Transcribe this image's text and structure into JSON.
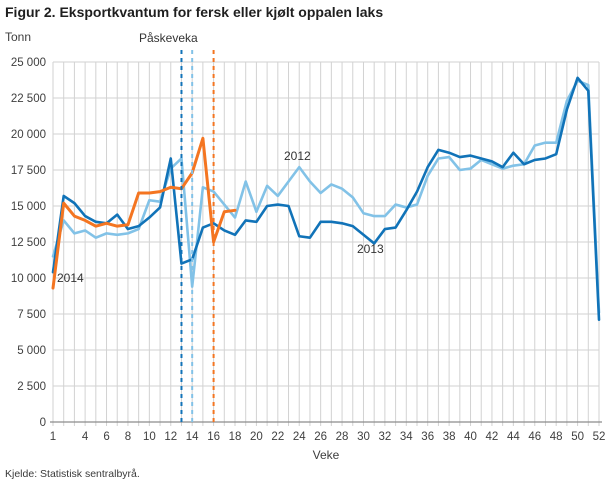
{
  "title": "Figur 2. Eksportkvantum for fersk eller kjølt oppalen laks",
  "source": "Kjelde: Statistisk sentralbyrå.",
  "colors": {
    "grid": "#d2d2d2",
    "axis": "#8c8c8c",
    "dark_blue": "#1173b8",
    "light_blue": "#82c2e7",
    "orange": "#f47521"
  },
  "chart_data": {
    "type": "line",
    "title": "Figur 2. Eksportkvantum for fersk eller kjølt oppalen laks",
    "ylabel": "Tonn",
    "xlabel": "Veke",
    "x_range": [
      1,
      52
    ],
    "ylim": [
      0,
      25000
    ],
    "grid": "both",
    "legend_position": "inline-annotations",
    "y_tick_values": [
      0,
      2500,
      5000,
      7500,
      10000,
      12500,
      15000,
      17500,
      20000,
      22500,
      25000
    ],
    "y_tick_labels": [
      "0",
      "2 500",
      "5 000",
      "7 500",
      "10 000",
      "12 500",
      "15 000",
      "17 500",
      "20 000",
      "22 500",
      "25 000"
    ],
    "x_tick_weeks": [
      1,
      4,
      6,
      8,
      10,
      12,
      14,
      16,
      18,
      20,
      22,
      24,
      26,
      28,
      30,
      32,
      34,
      36,
      38,
      40,
      42,
      44,
      46,
      48,
      50,
      52
    ],
    "annotations": {
      "paskeveka": "Påskeveka",
      "s2012": "2012",
      "s2013": "2013",
      "s2014": "2014"
    },
    "easter_lines": [
      {
        "year": "2013",
        "week": 13,
        "color": "#1173b8"
      },
      {
        "year": "2012",
        "week": 14,
        "color": "#82c2e7"
      },
      {
        "year": "2014",
        "week": 16,
        "color": "#f47521"
      }
    ],
    "series": [
      {
        "name": "2012",
        "color": "#82c2e7",
        "start_week": 1,
        "values": [
          11500,
          14000,
          13100,
          13300,
          12800,
          13100,
          13000,
          13100,
          13400,
          15400,
          15300,
          17600,
          18300,
          9400,
          16300,
          16000,
          15100,
          14200,
          16700,
          14600,
          16400,
          15700,
          16700,
          17700,
          16700,
          15900,
          16500,
          16200,
          15600,
          14500,
          14300,
          14300,
          15100,
          14900,
          15100,
          17100,
          18300,
          18400,
          17500,
          17600,
          18200,
          17900,
          17600,
          17800,
          17900,
          19200,
          19400,
          19400,
          22300,
          23700,
          23400,
          7600
        ]
      },
      {
        "name": "2013",
        "color": "#1173b8",
        "start_week": 1,
        "values": [
          10400,
          15700,
          15200,
          14300,
          13900,
          13800,
          14400,
          13400,
          13600,
          14200,
          14900,
          18300,
          11000,
          11300,
          13500,
          13800,
          13300,
          13000,
          14000,
          13900,
          15000,
          15100,
          15000,
          12900,
          12800,
          13900,
          13900,
          13800,
          13600,
          13000,
          12400,
          13400,
          13500,
          14700,
          16000,
          17700,
          18900,
          18700,
          18400,
          18500,
          18300,
          18100,
          17700,
          18700,
          17900,
          18200,
          18300,
          18600,
          21700,
          23900,
          23000,
          7100
        ]
      },
      {
        "name": "2014",
        "color": "#f47521",
        "start_week": 1,
        "values": [
          9300,
          15200,
          14300,
          14000,
          13600,
          13800,
          13600,
          13700,
          15900,
          15900,
          16000,
          16300,
          16200,
          17300,
          19700,
          12500,
          14600,
          14700
        ]
      }
    ]
  }
}
